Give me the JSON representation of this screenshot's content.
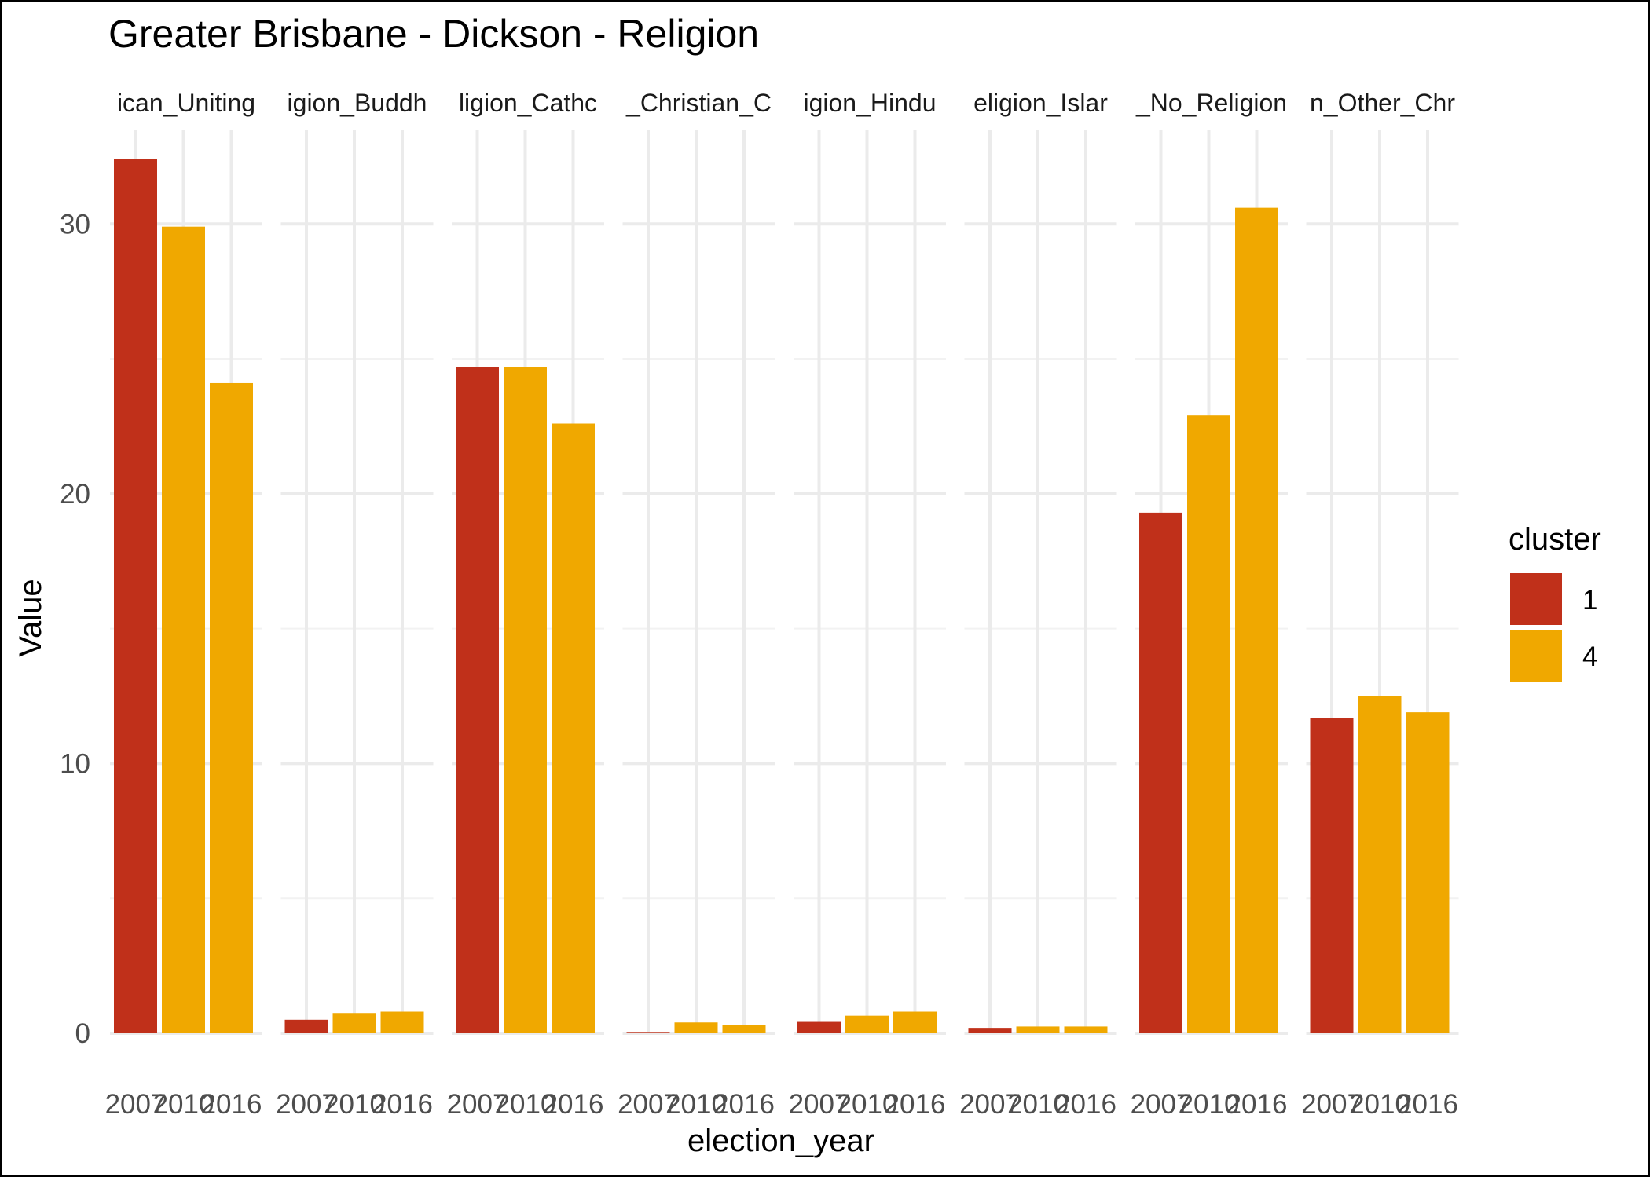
{
  "chart_data": {
    "type": "bar",
    "title": "Greater Brisbane - Dickson - Religion",
    "xlabel": "election_year",
    "ylabel": "Value",
    "ylim": [
      0,
      33.5
    ],
    "y_ticks": [
      0,
      10,
      20,
      30
    ],
    "grid": true,
    "legend": {
      "title": "cluster",
      "position": "right",
      "entries": [
        {
          "label": "1",
          "color": "#C0301A"
        },
        {
          "label": "4",
          "color": "#F0A800"
        }
      ]
    },
    "x_tick_labels": [
      "2007",
      "2010",
      "2016"
    ],
    "panels": [
      {
        "label": "ican_Uniting",
        "bars": [
          {
            "year": "2007",
            "cluster": "1",
            "value": 32.4
          },
          {
            "year": "2010",
            "cluster": "4",
            "value": 29.9
          },
          {
            "year": "2016",
            "cluster": "4",
            "value": 24.1
          }
        ]
      },
      {
        "label": "igion_Buddh",
        "bars": [
          {
            "year": "2007",
            "cluster": "1",
            "value": 0.5
          },
          {
            "year": "2010",
            "cluster": "4",
            "value": 0.75
          },
          {
            "year": "2016",
            "cluster": "4",
            "value": 0.8
          }
        ]
      },
      {
        "label": "ligion_Cathc",
        "bars": [
          {
            "year": "2007",
            "cluster": "1",
            "value": 24.7
          },
          {
            "year": "2010",
            "cluster": "4",
            "value": 24.7
          },
          {
            "year": "2016",
            "cluster": "4",
            "value": 22.6
          }
        ]
      },
      {
        "label": "_Christian_C",
        "bars": [
          {
            "year": "2007",
            "cluster": "1",
            "value": 0.05
          },
          {
            "year": "2010",
            "cluster": "4",
            "value": 0.4
          },
          {
            "year": "2016",
            "cluster": "4",
            "value": 0.3
          }
        ]
      },
      {
        "label": "igion_Hindu",
        "bars": [
          {
            "year": "2007",
            "cluster": "1",
            "value": 0.45
          },
          {
            "year": "2010",
            "cluster": "4",
            "value": 0.65
          },
          {
            "year": "2016",
            "cluster": "4",
            "value": 0.8
          }
        ]
      },
      {
        "label": "eligion_Islar",
        "bars": [
          {
            "year": "2007",
            "cluster": "1",
            "value": 0.2
          },
          {
            "year": "2010",
            "cluster": "4",
            "value": 0.25
          },
          {
            "year": "2016",
            "cluster": "4",
            "value": 0.25
          }
        ]
      },
      {
        "label": "_No_Religion",
        "bars": [
          {
            "year": "2007",
            "cluster": "1",
            "value": 19.3
          },
          {
            "year": "2010",
            "cluster": "4",
            "value": 22.9
          },
          {
            "year": "2016",
            "cluster": "4",
            "value": 30.6
          }
        ]
      },
      {
        "label": "n_Other_Chr",
        "bars": [
          {
            "year": "2007",
            "cluster": "1",
            "value": 11.7
          },
          {
            "year": "2010",
            "cluster": "4",
            "value": 12.5
          },
          {
            "year": "2016",
            "cluster": "4",
            "value": 11.9
          }
        ]
      }
    ]
  }
}
